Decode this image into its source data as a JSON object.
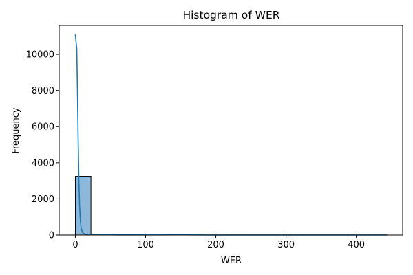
{
  "chart_data": {
    "type": "bar",
    "title": "Histogram of WER",
    "xlabel": "WER",
    "ylabel": "Frequency",
    "xlim": [
      -23,
      466
    ],
    "ylim": [
      0,
      11600
    ],
    "xticks": [
      0,
      100,
      200,
      300,
      400
    ],
    "yticks": [
      0,
      2000,
      4000,
      6000,
      8000,
      10000
    ],
    "bin_width": 22.2,
    "bins": [
      {
        "start": 0,
        "end": 22.2,
        "count": 3250
      },
      {
        "start": 22.2,
        "end": 44.4,
        "count": 20
      },
      {
        "start": 44.4,
        "end": 66.6,
        "count": 8
      },
      {
        "start": 66.6,
        "end": 88.8,
        "count": 5
      },
      {
        "start": 88.8,
        "end": 111.0,
        "count": 3
      },
      {
        "start": 111.0,
        "end": 133.2,
        "count": 2
      },
      {
        "start": 133.2,
        "end": 155.4,
        "count": 3
      },
      {
        "start": 155.4,
        "end": 177.6,
        "count": 1
      },
      {
        "start": 177.6,
        "end": 199.8,
        "count": 1
      },
      {
        "start": 199.8,
        "end": 222.0,
        "count": 1
      },
      {
        "start": 222.0,
        "end": 244.2,
        "count": 2
      },
      {
        "start": 244.2,
        "end": 266.4,
        "count": 1
      },
      {
        "start": 266.4,
        "end": 288.6,
        "count": 1
      },
      {
        "start": 288.6,
        "end": 310.8,
        "count": 1
      },
      {
        "start": 310.8,
        "end": 333.0,
        "count": 1
      },
      {
        "start": 333.0,
        "end": 355.2,
        "count": 1
      },
      {
        "start": 355.2,
        "end": 377.4,
        "count": 1
      },
      {
        "start": 377.4,
        "end": 399.6,
        "count": 1
      },
      {
        "start": 399.6,
        "end": 421.8,
        "count": 1
      },
      {
        "start": 421.8,
        "end": 444.0,
        "count": 1
      }
    ],
    "kde": {
      "x": [
        0,
        2,
        3,
        4,
        5,
        6,
        7,
        8,
        10,
        12,
        15,
        20,
        25,
        30,
        40,
        50,
        60,
        80,
        100,
        150,
        200,
        300,
        400,
        444
      ],
      "y": [
        11100,
        10300,
        8000,
        5200,
        3000,
        1700,
        900,
        450,
        150,
        70,
        40,
        25,
        18,
        15,
        12,
        10,
        8,
        6,
        5,
        10,
        3,
        2,
        1,
        1
      ]
    },
    "colors": {
      "bar_fill": "#8eb8d9",
      "bar_edge": "#000000",
      "kde_line": "#1f77b4",
      "axes": "#000000"
    },
    "grid": false,
    "legend": "none"
  }
}
